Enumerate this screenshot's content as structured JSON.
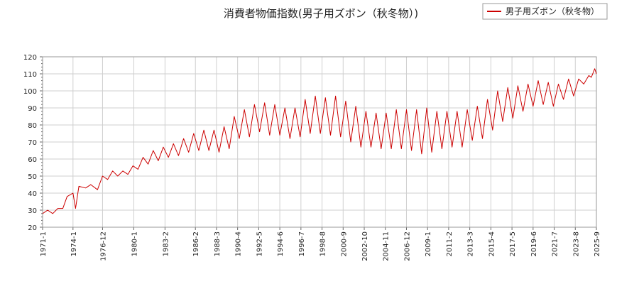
{
  "chart_data": {
    "type": "line",
    "title": "消費者物価指数(男子用ズボン（秋冬物）)",
    "xlabel": "",
    "ylabel": "",
    "ylim": [
      20,
      120
    ],
    "yticks": [
      20,
      30,
      40,
      50,
      60,
      70,
      80,
      90,
      100,
      110,
      120
    ],
    "x_range": [
      "1971-1",
      "2025-9"
    ],
    "xticks": [
      "1971-1",
      "1974-1",
      "1976-12",
      "1980-1",
      "1983-2",
      "1986-2",
      "1988-3",
      "1990-4",
      "1992-5",
      "1994-6",
      "1996-7",
      "1998-8",
      "2000-9",
      "2002-10",
      "2004-11",
      "2006-12",
      "2009-1",
      "2011-2",
      "2013-3",
      "2015-4",
      "2017-5",
      "2019-6",
      "2021-7",
      "2023-8",
      "2025-9"
    ],
    "grid": true,
    "legend_position": "top-right",
    "line_color": "#cc0000",
    "series": [
      {
        "name": "男子用ズボン（秋冬物）",
        "color": "#cc0000",
        "values": [
          {
            "x": "1971-1",
            "y": 28
          },
          {
            "x": "1971-7",
            "y": 30
          },
          {
            "x": "1972-1",
            "y": 28
          },
          {
            "x": "1972-7",
            "y": 31
          },
          {
            "x": "1973-1",
            "y": 31
          },
          {
            "x": "1973-6",
            "y": 38
          },
          {
            "x": "1974-1",
            "y": 40
          },
          {
            "x": "1974-4",
            "y": 31
          },
          {
            "x": "1974-8",
            "y": 44
          },
          {
            "x": "1975-4",
            "y": 43
          },
          {
            "x": "1975-10",
            "y": 45
          },
          {
            "x": "1976-6",
            "y": 42
          },
          {
            "x": "1976-12",
            "y": 50
          },
          {
            "x": "1977-6",
            "y": 48
          },
          {
            "x": "1977-12",
            "y": 53
          },
          {
            "x": "1978-6",
            "y": 50
          },
          {
            "x": "1978-12",
            "y": 53
          },
          {
            "x": "1979-6",
            "y": 51
          },
          {
            "x": "1979-12",
            "y": 56
          },
          {
            "x": "1980-6",
            "y": 54
          },
          {
            "x": "1980-12",
            "y": 61
          },
          {
            "x": "1981-6",
            "y": 57
          },
          {
            "x": "1981-12",
            "y": 65
          },
          {
            "x": "1982-6",
            "y": 59
          },
          {
            "x": "1982-12",
            "y": 67
          },
          {
            "x": "1983-6",
            "y": 61
          },
          {
            "x": "1983-12",
            "y": 69
          },
          {
            "x": "1984-6",
            "y": 62
          },
          {
            "x": "1984-12",
            "y": 72
          },
          {
            "x": "1985-6",
            "y": 64
          },
          {
            "x": "1985-12",
            "y": 75
          },
          {
            "x": "1986-6",
            "y": 65
          },
          {
            "x": "1986-12",
            "y": 77
          },
          {
            "x": "1987-6",
            "y": 65
          },
          {
            "x": "1987-12",
            "y": 77
          },
          {
            "x": "1988-6",
            "y": 64
          },
          {
            "x": "1988-12",
            "y": 79
          },
          {
            "x": "1989-6",
            "y": 66
          },
          {
            "x": "1989-12",
            "y": 85
          },
          {
            "x": "1990-6",
            "y": 72
          },
          {
            "x": "1990-12",
            "y": 89
          },
          {
            "x": "1991-6",
            "y": 73
          },
          {
            "x": "1991-12",
            "y": 92
          },
          {
            "x": "1992-6",
            "y": 76
          },
          {
            "x": "1992-12",
            "y": 93
          },
          {
            "x": "1993-6",
            "y": 74
          },
          {
            "x": "1993-12",
            "y": 92
          },
          {
            "x": "1994-6",
            "y": 74
          },
          {
            "x": "1994-12",
            "y": 90
          },
          {
            "x": "1995-6",
            "y": 72
          },
          {
            "x": "1995-12",
            "y": 90
          },
          {
            "x": "1996-6",
            "y": 73
          },
          {
            "x": "1996-12",
            "y": 95
          },
          {
            "x": "1997-6",
            "y": 75
          },
          {
            "x": "1997-12",
            "y": 97
          },
          {
            "x": "1998-6",
            "y": 75
          },
          {
            "x": "1998-12",
            "y": 96
          },
          {
            "x": "1999-6",
            "y": 74
          },
          {
            "x": "1999-12",
            "y": 97
          },
          {
            "x": "2000-6",
            "y": 73
          },
          {
            "x": "2000-12",
            "y": 94
          },
          {
            "x": "2001-6",
            "y": 70
          },
          {
            "x": "2001-12",
            "y": 91
          },
          {
            "x": "2002-6",
            "y": 67
          },
          {
            "x": "2002-12",
            "y": 88
          },
          {
            "x": "2003-6",
            "y": 67
          },
          {
            "x": "2003-12",
            "y": 87
          },
          {
            "x": "2004-6",
            "y": 66
          },
          {
            "x": "2004-12",
            "y": 87
          },
          {
            "x": "2005-6",
            "y": 66
          },
          {
            "x": "2005-12",
            "y": 89
          },
          {
            "x": "2006-6",
            "y": 66
          },
          {
            "x": "2006-12",
            "y": 89
          },
          {
            "x": "2007-6",
            "y": 65
          },
          {
            "x": "2007-12",
            "y": 89
          },
          {
            "x": "2008-6",
            "y": 63
          },
          {
            "x": "2008-12",
            "y": 90
          },
          {
            "x": "2009-6",
            "y": 64
          },
          {
            "x": "2009-12",
            "y": 88
          },
          {
            "x": "2010-6",
            "y": 66
          },
          {
            "x": "2010-12",
            "y": 88
          },
          {
            "x": "2011-6",
            "y": 67
          },
          {
            "x": "2011-12",
            "y": 88
          },
          {
            "x": "2012-6",
            "y": 67
          },
          {
            "x": "2012-12",
            "y": 89
          },
          {
            "x": "2013-6",
            "y": 71
          },
          {
            "x": "2013-12",
            "y": 91
          },
          {
            "x": "2014-6",
            "y": 72
          },
          {
            "x": "2014-12",
            "y": 95
          },
          {
            "x": "2015-6",
            "y": 77
          },
          {
            "x": "2015-12",
            "y": 100
          },
          {
            "x": "2016-6",
            "y": 82
          },
          {
            "x": "2016-12",
            "y": 102
          },
          {
            "x": "2017-6",
            "y": 84
          },
          {
            "x": "2017-12",
            "y": 103
          },
          {
            "x": "2018-6",
            "y": 88
          },
          {
            "x": "2018-12",
            "y": 104
          },
          {
            "x": "2019-6",
            "y": 91
          },
          {
            "x": "2019-12",
            "y": 106
          },
          {
            "x": "2020-6",
            "y": 92
          },
          {
            "x": "2020-12",
            "y": 105
          },
          {
            "x": "2021-6",
            "y": 91
          },
          {
            "x": "2021-12",
            "y": 104
          },
          {
            "x": "2022-6",
            "y": 95
          },
          {
            "x": "2022-12",
            "y": 107
          },
          {
            "x": "2023-6",
            "y": 97
          },
          {
            "x": "2023-12",
            "y": 107
          },
          {
            "x": "2024-6",
            "y": 104
          },
          {
            "x": "2024-12",
            "y": 109
          },
          {
            "x": "2025-3",
            "y": 108
          },
          {
            "x": "2025-7",
            "y": 113
          },
          {
            "x": "2025-9",
            "y": 110
          }
        ]
      }
    ]
  }
}
